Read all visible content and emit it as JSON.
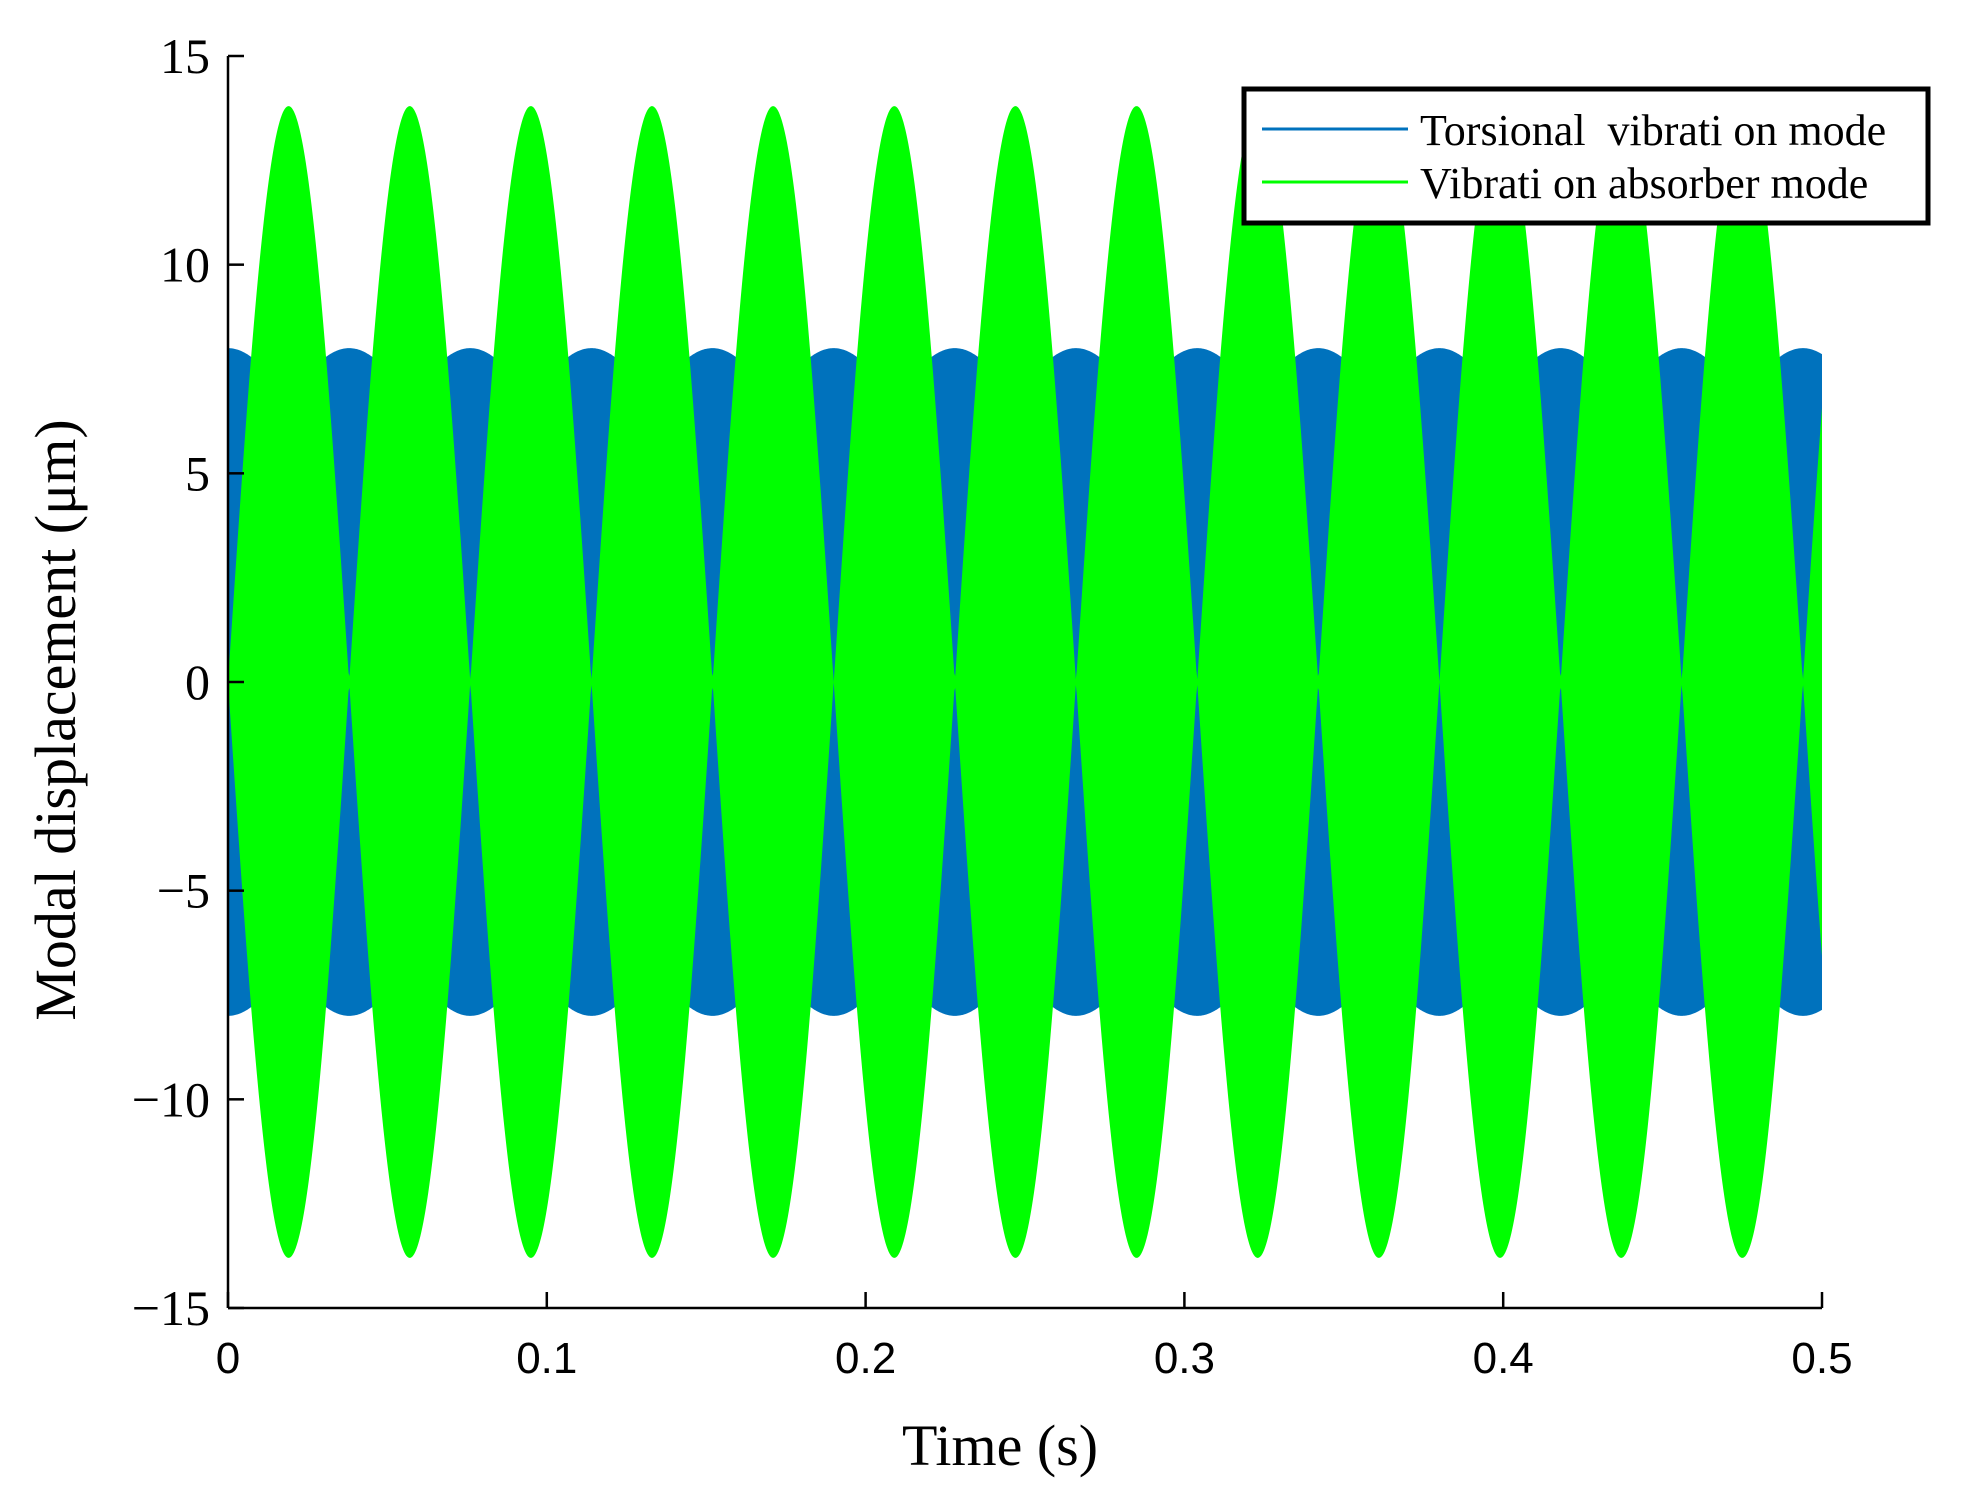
{
  "chart_data": {
    "type": "line",
    "title": "",
    "xlabel": "Time (s)",
    "ylabel": "Modal displacement (μm)",
    "xlim": [
      0,
      0.5
    ],
    "ylim": [
      -15,
      15
    ],
    "x_ticks": [
      0,
      0.1,
      0.2,
      0.3,
      0.4,
      0.5
    ],
    "x_tick_labels": [
      "0",
      "0.1",
      "0.2",
      "0.3",
      "0.4",
      "0.5"
    ],
    "y_ticks": [
      15,
      10,
      5,
      0,
      -5,
      -10,
      -15
    ],
    "y_tick_labels": [
      "15",
      "10",
      "5",
      "0",
      "−5",
      "−10",
      "−15"
    ],
    "grid": false,
    "legend_position": "top-right",
    "series": [
      {
        "name": "Torsional  vibrati on mode",
        "color": "#0072BD",
        "envelope": "abs(cos)",
        "min_amplitude": 6.8,
        "max_amplitude": 8.0,
        "beat_period": 0.038,
        "carrier_frequency": 1000
      },
      {
        "name": "Vibrati on absorber mode",
        "color": "#00FF00",
        "envelope": "abs(sin)",
        "max_amplitude": 13.8,
        "beat_period": 0.038,
        "carrier_frequency": 1000
      }
    ]
  }
}
